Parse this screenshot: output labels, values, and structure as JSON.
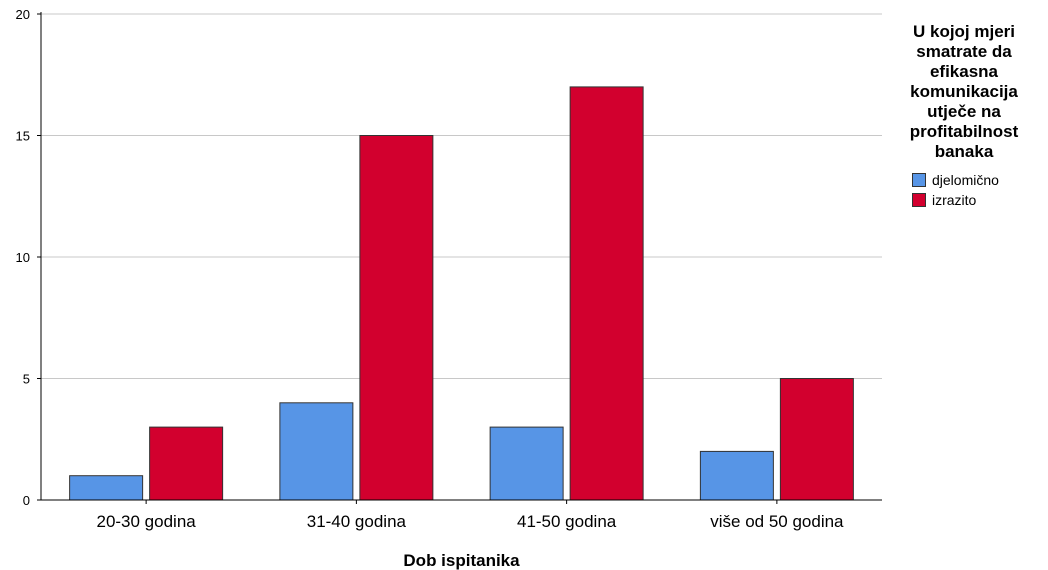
{
  "chart_data": {
    "type": "bar",
    "title": "",
    "xlabel": "Dob ispitanika",
    "ylabel": "",
    "ylim": [
      0,
      20
    ],
    "yticks": [
      0,
      5,
      10,
      15,
      20
    ],
    "grid": true,
    "legend_placement": "right",
    "legend_title": "U kojoj mjeri smatrate da efikasna komunikacija utječe na profitabilnost banaka",
    "categories": [
      "20-30 godina",
      "31-40 godina",
      "41-50 godina",
      "više od 50 godina"
    ],
    "series": [
      {
        "name": "djelomično",
        "color": "#5795e6",
        "values": [
          1,
          4,
          3,
          2
        ]
      },
      {
        "name": "izrazito",
        "color": "#d2002e",
        "values": [
          3,
          15,
          17,
          5
        ]
      }
    ]
  }
}
